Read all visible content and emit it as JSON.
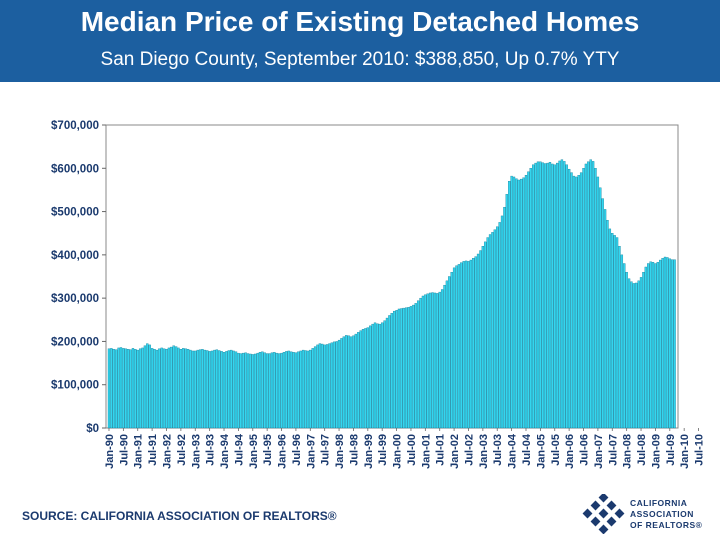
{
  "header": {
    "title": "Median Price of Existing Detached Homes",
    "subtitle": "San Diego County, September 2010: $388,850, Up 0.7% YTY"
  },
  "footer": {
    "source": "SOURCE: CALIFORNIA ASSOCIATION OF REALTORS®",
    "logo_lines": [
      "CALIFORNIA",
      "ASSOCIATION",
      "OF REALTORS®"
    ]
  },
  "colors": {
    "header_bg": "#1c5fa0",
    "bar_fill": "#33d6ef",
    "bar_stroke": "#0d7a96",
    "logo": "#1b3a6e"
  },
  "chart_data": {
    "type": "bar",
    "ylim": [
      0,
      700000
    ],
    "y_ticks": [
      0,
      100000,
      200000,
      300000,
      400000,
      500000,
      600000,
      700000
    ],
    "y_tick_labels": [
      "$0",
      "$100,000",
      "$200,000",
      "$300,000",
      "$400,000",
      "$500,000",
      "$600,000",
      "$700,000"
    ],
    "x_tick_labels": [
      "Jan-90",
      "Jul-90",
      "Jan-91",
      "Jul-91",
      "Jan-92",
      "Jul-92",
      "Jan-93",
      "Jul-93",
      "Jan-94",
      "Jul-94",
      "Jan-95",
      "Jul-95",
      "Jan-96",
      "Jul-96",
      "Jan-97",
      "Jul-97",
      "Jan-98",
      "Jul-98",
      "Jan-99",
      "Jul-99",
      "Jan-00",
      "Jul-00",
      "Jan-01",
      "Jul-01",
      "Jan-02",
      "Jul-02",
      "Jan-03",
      "Jul-03",
      "Jan-04",
      "Jul-04",
      "Jan-05",
      "Jul-05",
      "Jan-06",
      "Jul-06",
      "Jan-07",
      "Jul-07",
      "Jan-08",
      "Jul-08",
      "Jan-09",
      "Jul-09",
      "Jan-10",
      "Jul-10"
    ],
    "months_per_label": 6,
    "grid": false,
    "values": [
      183000,
      184000,
      182000,
      181000,
      185000,
      186000,
      184000,
      183000,
      182000,
      181000,
      184000,
      182000,
      180000,
      183000,
      185000,
      190000,
      195000,
      192000,
      184000,
      182000,
      180000,
      183000,
      185000,
      183000,
      182000,
      185000,
      187000,
      190000,
      188000,
      185000,
      182000,
      184000,
      183000,
      182000,
      180000,
      178000,
      178000,
      180000,
      181000,
      182000,
      180000,
      179000,
      177000,
      178000,
      180000,
      181000,
      179000,
      177000,
      175000,
      177000,
      179000,
      180000,
      178000,
      176000,
      173000,
      172000,
      173000,
      174000,
      172000,
      171000,
      170000,
      171000,
      173000,
      175000,
      176000,
      174000,
      172000,
      172000,
      174000,
      175000,
      173000,
      172000,
      173000,
      175000,
      177000,
      178000,
      176000,
      175000,
      174000,
      176000,
      178000,
      180000,
      179000,
      178000,
      180000,
      184000,
      188000,
      192000,
      195000,
      194000,
      192000,
      193000,
      195000,
      197000,
      199000,
      200000,
      203000,
      207000,
      211000,
      214000,
      213000,
      211000,
      213000,
      217000,
      221000,
      225000,
      228000,
      230000,
      232000,
      236000,
      240000,
      243000,
      241000,
      240000,
      243000,
      248000,
      254000,
      260000,
      265000,
      270000,
      272000,
      275000,
      276000,
      277000,
      278000,
      279000,
      281000,
      284000,
      288000,
      294000,
      300000,
      305000,
      308000,
      310000,
      312000,
      313000,
      312000,
      311000,
      314000,
      320000,
      330000,
      340000,
      350000,
      360000,
      370000,
      375000,
      378000,
      382000,
      385000,
      386000,
      385000,
      388000,
      392000,
      396000,
      402000,
      410000,
      420000,
      430000,
      440000,
      447000,
      452000,
      458000,
      465000,
      475000,
      490000,
      510000,
      540000,
      570000,
      582000,
      580000,
      576000,
      573000,
      575000,
      578000,
      584000,
      592000,
      600000,
      608000,
      612000,
      615000,
      615000,
      613000,
      611000,
      612000,
      614000,
      610000,
      608000,
      612000,
      617000,
      620000,
      616000,
      608000,
      598000,
      590000,
      582000,
      580000,
      584000,
      590000,
      600000,
      610000,
      615000,
      620000,
      616000,
      600000,
      580000,
      555000,
      530000,
      505000,
      480000,
      460000,
      450000,
      445000,
      440000,
      420000,
      400000,
      380000,
      360000,
      345000,
      338000,
      334000,
      335000,
      340000,
      348000,
      360000,
      372000,
      380000,
      384000,
      383000,
      380000,
      383000,
      388000,
      392000,
      395000,
      394000,
      391000,
      389000,
      388850
    ]
  }
}
